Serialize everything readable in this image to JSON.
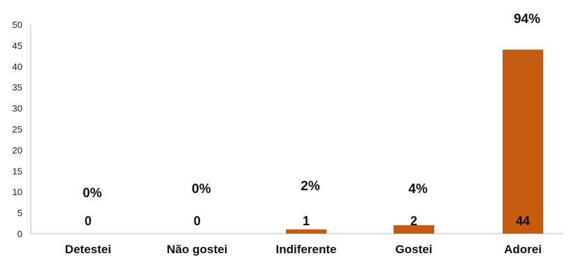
{
  "chart_data": {
    "type": "bar",
    "categories": [
      "Detestei",
      "Não gostei",
      "Indiferente",
      "Gostei",
      "Adorei"
    ],
    "values": [
      0,
      0,
      1,
      2,
      44
    ],
    "percent_labels": [
      "0%",
      "0%",
      "2%",
      "4%",
      "94%"
    ],
    "ylim": [
      0,
      50
    ],
    "yticks": [
      0,
      5,
      10,
      15,
      20,
      25,
      30,
      35,
      40,
      45,
      50
    ],
    "grid": false,
    "legend": "none",
    "bar_color": "#c55a11"
  }
}
